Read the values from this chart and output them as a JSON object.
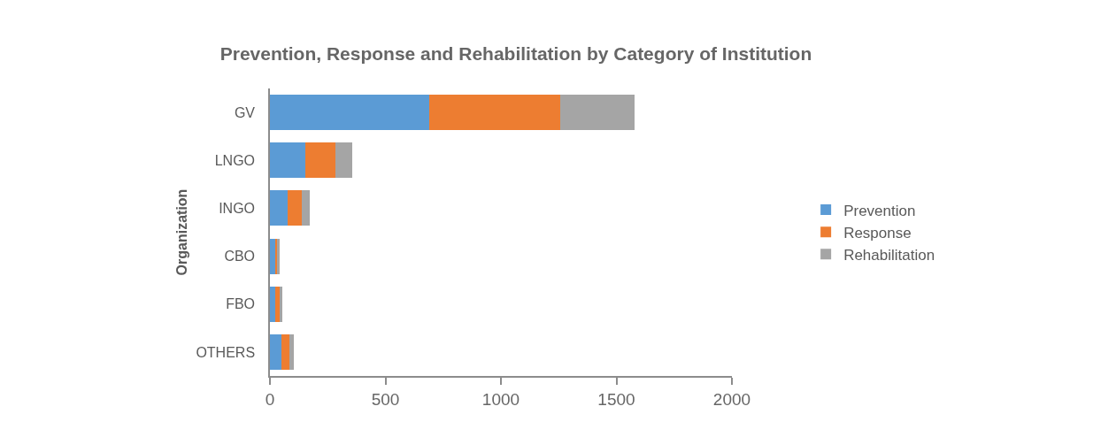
{
  "chart_data": {
    "type": "bar",
    "orientation": "horizontal",
    "stacked": true,
    "title": "Prevention, Response and Rehabilitation by Category of Institution",
    "ylabel": "Organization",
    "categories": [
      "GV",
      "LNGO",
      "INGO",
      "CBO",
      "FBO",
      "OTHERS"
    ],
    "series": [
      {
        "name": "Prevention",
        "color": "#5b9bd5",
        "values": [
          690,
          155,
          75,
          22,
          22,
          48
        ]
      },
      {
        "name": "Response",
        "color": "#ed7d31",
        "values": [
          567,
          127,
          61,
          10,
          19,
          36
        ]
      },
      {
        "name": "Rehabilitation",
        "color": "#a5a5a5",
        "values": [
          320,
          73,
          38,
          9,
          11,
          18
        ]
      }
    ],
    "xlim": [
      0,
      2000
    ],
    "xticks": [
      0,
      500,
      1000,
      1500,
      2000
    ],
    "legend": "right"
  }
}
